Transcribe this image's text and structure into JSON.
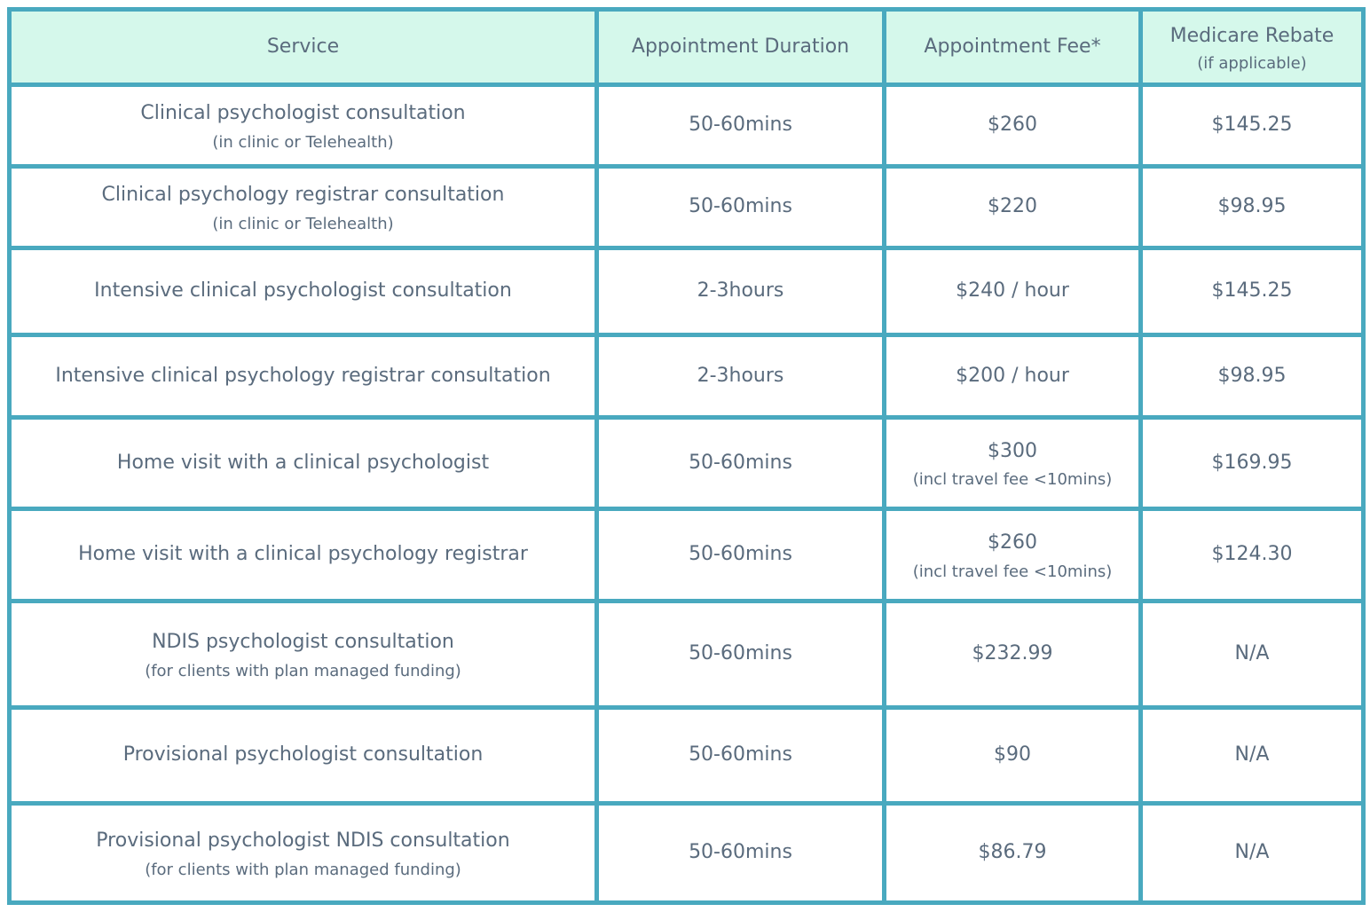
{
  "page": {
    "background_color": "#FFFFFF"
  },
  "table": {
    "style": {
      "border_color": "#49A9BF",
      "header_background": "#D5F8EB",
      "text_color": "#5A6B7D"
    },
    "header": {
      "service": {
        "label": "Service"
      },
      "duration": {
        "label": "Appointment Duration"
      },
      "fee": {
        "label": "Appointment Fee*"
      },
      "rebate": {
        "label": "Medicare Rebate",
        "sublabel": "(if applicable)"
      }
    },
    "rows": [
      {
        "service": "Clinical psychologist consultation",
        "service_note": "(in clinic or Telehealth)",
        "duration": "50-60mins",
        "fee": "$260",
        "rebate": "$145.25"
      },
      {
        "service": "Clinical psychology registrar consultation",
        "service_note": "(in clinic or Telehealth)",
        "duration": "50-60mins",
        "fee": "$220",
        "rebate": "$98.95"
      },
      {
        "service": "Intensive clinical psychologist consultation",
        "duration": "2-3hours",
        "fee": "$240 / hour",
        "rebate": "$145.25"
      },
      {
        "service": "Intensive clinical psychology registrar consultation",
        "duration": "2-3hours",
        "fee": "$200 / hour",
        "rebate": "$98.95"
      },
      {
        "service": "Home visit with a clinical psychologist",
        "duration": "50-60mins",
        "fee": "$300",
        "fee_note": "(incl travel fee <10mins)",
        "rebate": "$169.95"
      },
      {
        "service": "Home visit with a clinical psychology registrar",
        "duration": "50-60mins",
        "fee": "$260",
        "fee_note": "(incl travel fee <10mins)",
        "rebate": "$124.30"
      },
      {
        "service": "NDIS psychologist consultation",
        "service_note": "(for clients with plan managed funding)",
        "duration": "50-60mins",
        "fee": "$232.99",
        "rebate": "N/A"
      },
      {
        "service": "Provisional psychologist consultation",
        "duration": "50-60mins",
        "fee": "$90",
        "rebate": "N/A"
      },
      {
        "service": "Provisional psychologist NDIS consultation",
        "service_note": "(for clients with plan managed funding)",
        "duration": "50-60mins",
        "fee": "$86.79",
        "rebate": "N/A"
      }
    ]
  }
}
